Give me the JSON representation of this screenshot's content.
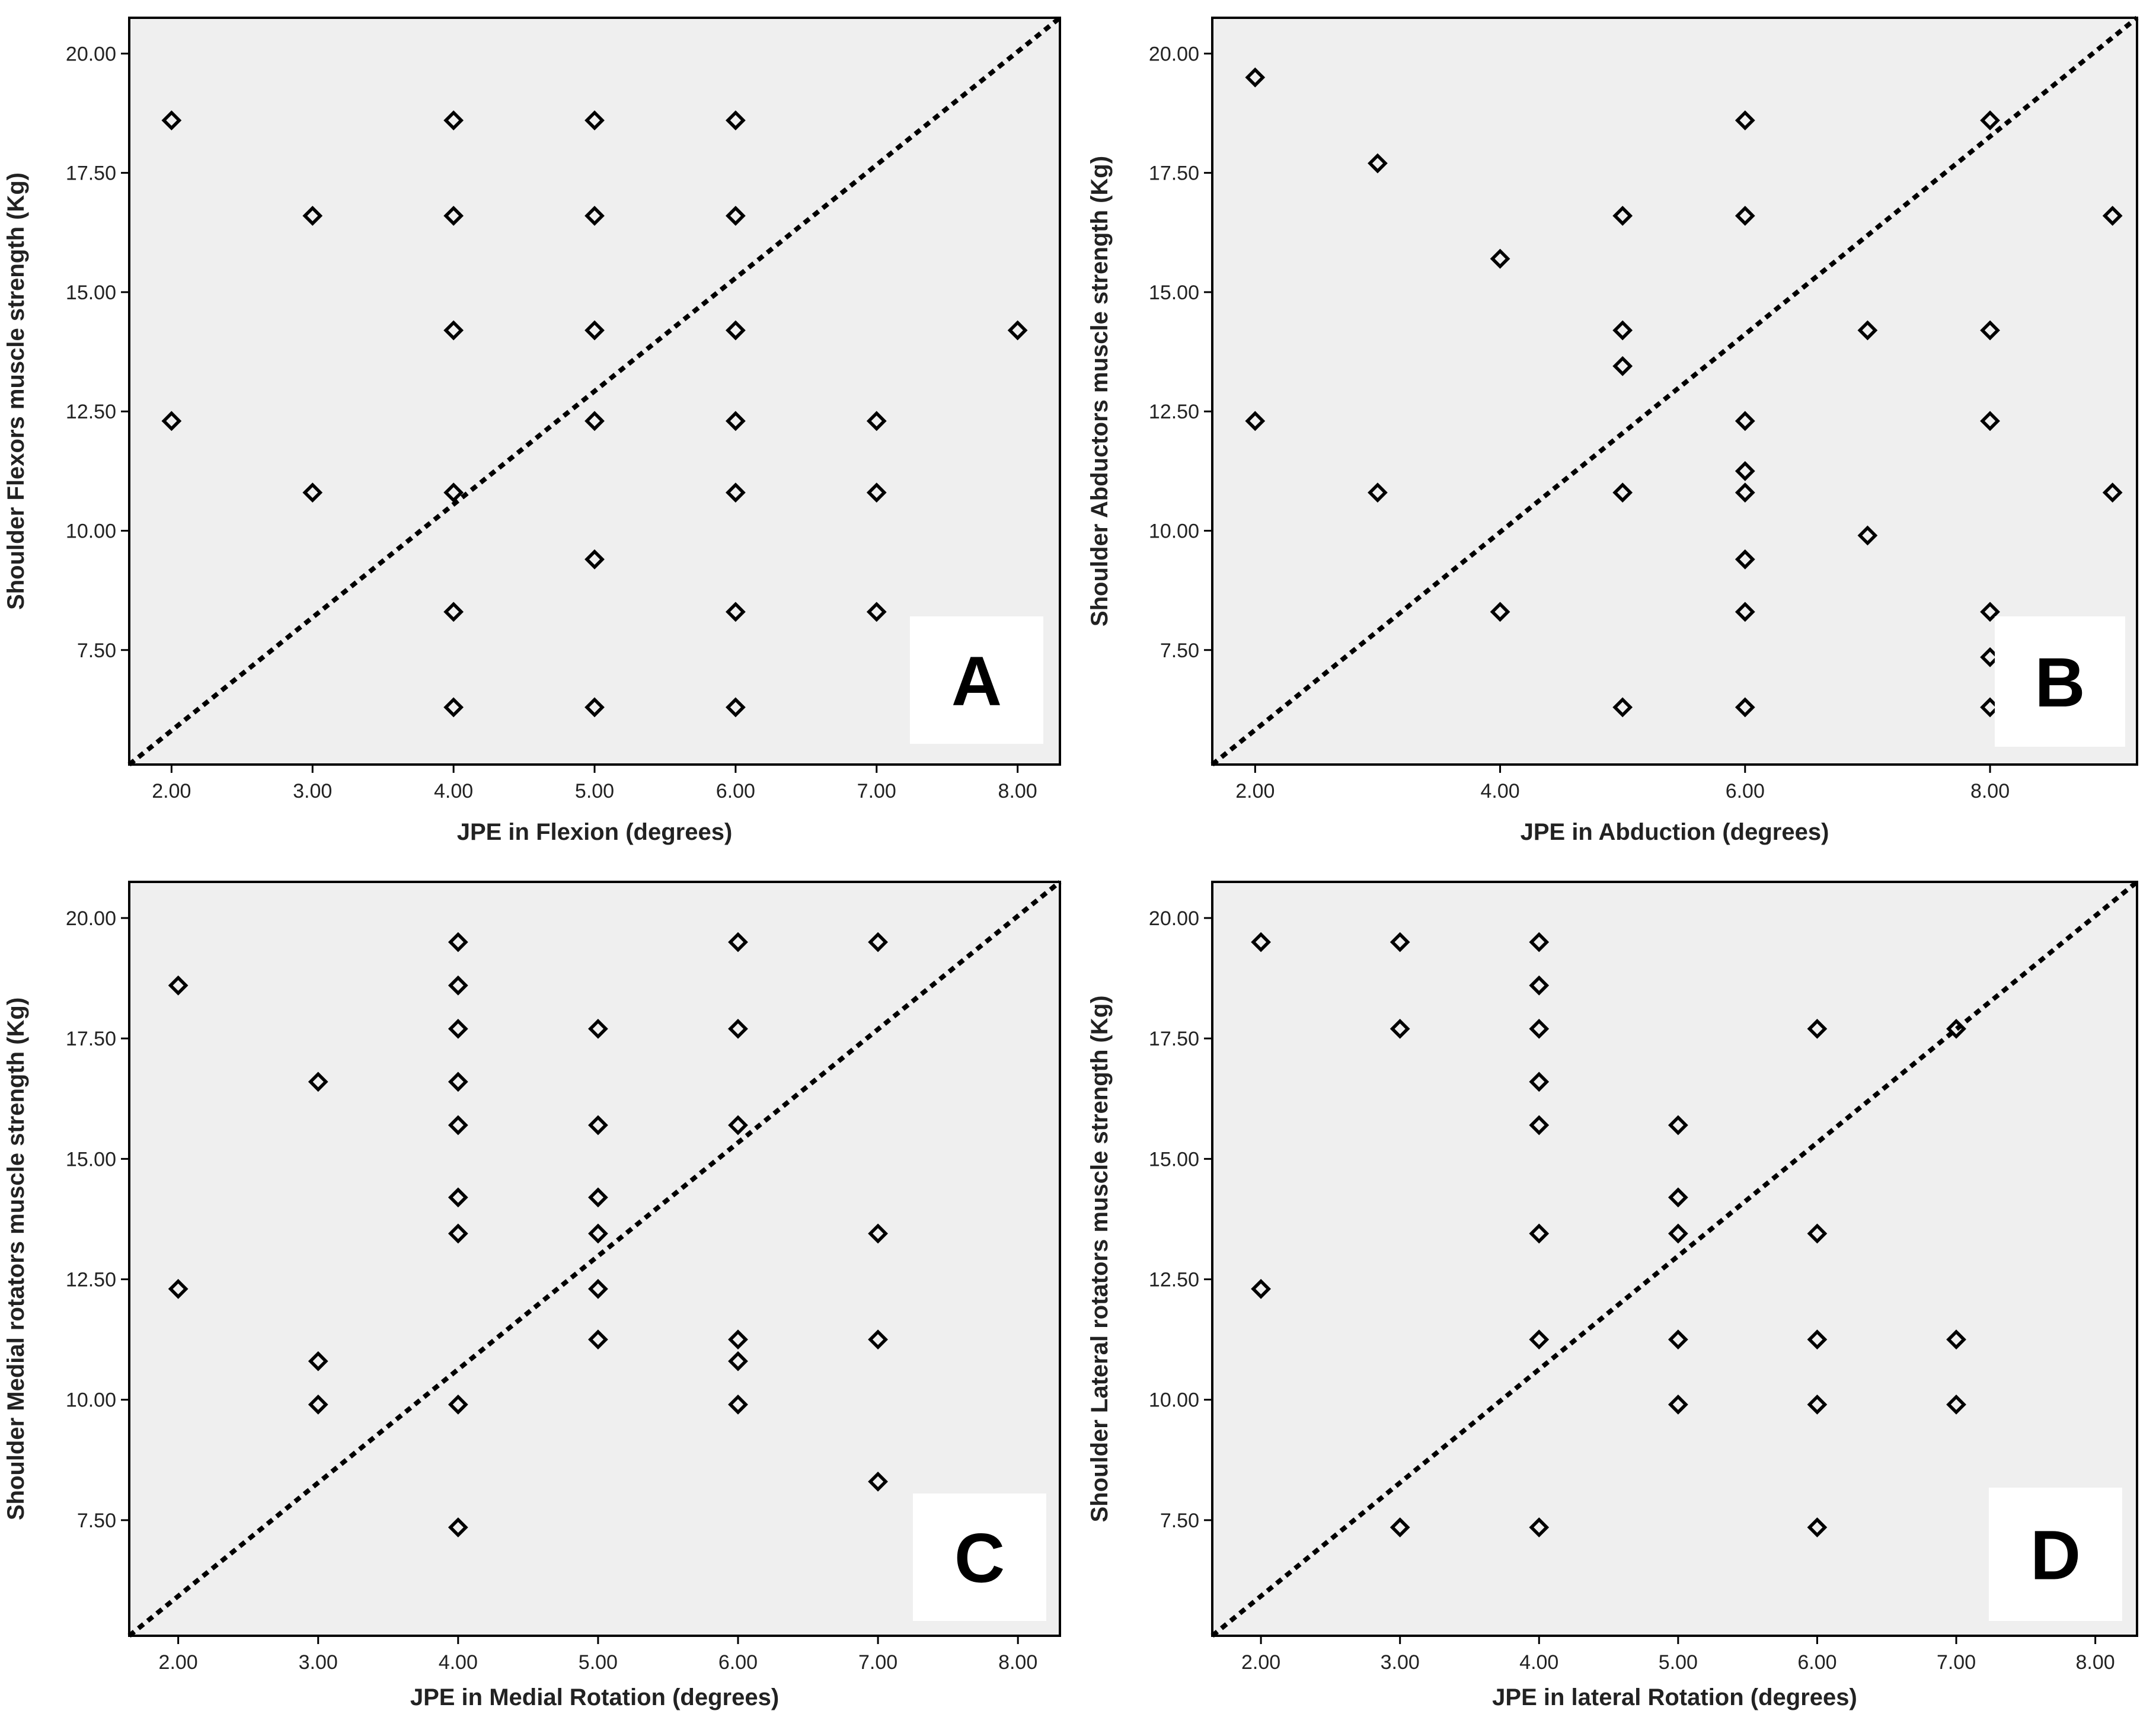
{
  "colors": {
    "plot_bg": "#efefef",
    "frame": "#000000",
    "marker": "#000000",
    "label_box": "#ffffff"
  },
  "chart_data": [
    {
      "type": "scatter",
      "panel": "A",
      "xlabel": "JPE in Flexion (degrees)",
      "ylabel": "Shoulder Flexors muscle strength (Kg)",
      "xlim": [
        1.7,
        8.3
      ],
      "ylim": [
        5.1,
        20.75
      ],
      "xticks": [
        "2.00",
        "3.00",
        "4.00",
        "5.00",
        "6.00",
        "7.00",
        "8.00"
      ],
      "yticks": [
        "7.50",
        "10.00",
        "12.50",
        "15.00",
        "17.50",
        "20.00"
      ],
      "reference_line": "diagonal",
      "points": [
        {
          "x": 2,
          "y": 18.6
        },
        {
          "x": 2,
          "y": 12.3
        },
        {
          "x": 3,
          "y": 16.6
        },
        {
          "x": 3,
          "y": 10.8
        },
        {
          "x": 4,
          "y": 18.6
        },
        {
          "x": 4,
          "y": 16.6
        },
        {
          "x": 4,
          "y": 14.2
        },
        {
          "x": 4,
          "y": 10.8
        },
        {
          "x": 4,
          "y": 8.3
        },
        {
          "x": 4,
          "y": 6.3
        },
        {
          "x": 5,
          "y": 18.6
        },
        {
          "x": 5,
          "y": 16.6
        },
        {
          "x": 5,
          "y": 14.2
        },
        {
          "x": 5,
          "y": 12.3
        },
        {
          "x": 5,
          "y": 9.4
        },
        {
          "x": 5,
          "y": 6.3
        },
        {
          "x": 6,
          "y": 18.6
        },
        {
          "x": 6,
          "y": 16.6
        },
        {
          "x": 6,
          "y": 14.2
        },
        {
          "x": 6,
          "y": 12.3
        },
        {
          "x": 6,
          "y": 10.8
        },
        {
          "x": 6,
          "y": 8.3
        },
        {
          "x": 6,
          "y": 6.3
        },
        {
          "x": 7,
          "y": 12.3
        },
        {
          "x": 7,
          "y": 10.8
        },
        {
          "x": 7,
          "y": 8.3
        },
        {
          "x": 8,
          "y": 14.2
        }
      ]
    },
    {
      "type": "scatter",
      "panel": "B",
      "xlabel": "JPE in Abduction (degrees)",
      "ylabel": "Shoulder Abductors muscle strength (Kg)",
      "xlim": [
        1.65,
        9.2
      ],
      "ylim": [
        5.1,
        20.75
      ],
      "xticks": [
        "2.00",
        "4.00",
        "6.00",
        "8.00"
      ],
      "yticks": [
        "7.50",
        "10.00",
        "12.50",
        "15.00",
        "17.50",
        "20.00"
      ],
      "reference_line": "diagonal",
      "points": [
        {
          "x": 2,
          "y": 19.5
        },
        {
          "x": 2,
          "y": 12.3
        },
        {
          "x": 3,
          "y": 17.7
        },
        {
          "x": 3,
          "y": 10.8
        },
        {
          "x": 4,
          "y": 15.7
        },
        {
          "x": 4,
          "y": 8.3
        },
        {
          "x": 5,
          "y": 16.6
        },
        {
          "x": 5,
          "y": 14.2
        },
        {
          "x": 5,
          "y": 13.45
        },
        {
          "x": 5,
          "y": 10.8
        },
        {
          "x": 5,
          "y": 6.3
        },
        {
          "x": 6,
          "y": 18.6
        },
        {
          "x": 6,
          "y": 16.6
        },
        {
          "x": 6,
          "y": 12.3
        },
        {
          "x": 6,
          "y": 11.25
        },
        {
          "x": 6,
          "y": 10.8
        },
        {
          "x": 6,
          "y": 9.4
        },
        {
          "x": 6,
          "y": 8.3
        },
        {
          "x": 6,
          "y": 6.3
        },
        {
          "x": 7,
          "y": 14.2
        },
        {
          "x": 7,
          "y": 9.9
        },
        {
          "x": 8,
          "y": 18.6
        },
        {
          "x": 8,
          "y": 14.2
        },
        {
          "x": 8,
          "y": 12.3
        },
        {
          "x": 8,
          "y": 8.3
        },
        {
          "x": 8,
          "y": 7.35
        },
        {
          "x": 8,
          "y": 6.3
        },
        {
          "x": 9,
          "y": 16.6
        },
        {
          "x": 9,
          "y": 10.8
        }
      ]
    },
    {
      "type": "scatter",
      "panel": "C",
      "xlabel": "JPE in Medial Rotation (degrees)",
      "ylabel": "Shoulder Medial rotators muscle strength (Kg)",
      "xlim": [
        1.65,
        8.3
      ],
      "ylim": [
        5.1,
        20.75
      ],
      "xticks": [
        "2.00",
        "3.00",
        "4.00",
        "5.00",
        "6.00",
        "7.00",
        "8.00"
      ],
      "yticks": [
        "7.50",
        "10.00",
        "12.50",
        "15.00",
        "17.50",
        "20.00"
      ],
      "reference_line": "diagonal",
      "points": [
        {
          "x": 2,
          "y": 18.6
        },
        {
          "x": 2,
          "y": 12.3
        },
        {
          "x": 3,
          "y": 16.6
        },
        {
          "x": 3,
          "y": 10.8
        },
        {
          "x": 3,
          "y": 9.9
        },
        {
          "x": 4,
          "y": 19.5
        },
        {
          "x": 4,
          "y": 18.6
        },
        {
          "x": 4,
          "y": 17.7
        },
        {
          "x": 4,
          "y": 16.6
        },
        {
          "x": 4,
          "y": 15.7
        },
        {
          "x": 4,
          "y": 14.2
        },
        {
          "x": 4,
          "y": 13.45
        },
        {
          "x": 4,
          "y": 9.9
        },
        {
          "x": 4,
          "y": 7.35
        },
        {
          "x": 5,
          "y": 17.7
        },
        {
          "x": 5,
          "y": 15.7
        },
        {
          "x": 5,
          "y": 14.2
        },
        {
          "x": 5,
          "y": 13.45
        },
        {
          "x": 5,
          "y": 12.3
        },
        {
          "x": 5,
          "y": 11.25
        },
        {
          "x": 6,
          "y": 19.5
        },
        {
          "x": 6,
          "y": 17.7
        },
        {
          "x": 6,
          "y": 15.7
        },
        {
          "x": 6,
          "y": 11.25
        },
        {
          "x": 6,
          "y": 10.8
        },
        {
          "x": 6,
          "y": 9.9
        },
        {
          "x": 7,
          "y": 19.5
        },
        {
          "x": 7,
          "y": 13.45
        },
        {
          "x": 7,
          "y": 11.25
        },
        {
          "x": 7,
          "y": 8.3
        }
      ]
    },
    {
      "type": "scatter",
      "panel": "D",
      "xlabel": "JPE in lateral Rotation (degrees)",
      "ylabel": "Shoulder Lateral rotators muscle strength (Kg)",
      "xlim": [
        1.65,
        8.3
      ],
      "ylim": [
        5.1,
        20.75
      ],
      "xticks": [
        "2.00",
        "3.00",
        "4.00",
        "5.00",
        "6.00",
        "7.00",
        "8.00"
      ],
      "yticks": [
        "7.50",
        "10.00",
        "12.50",
        "15.00",
        "17.50",
        "20.00"
      ],
      "reference_line": "diagonal",
      "points": [
        {
          "x": 2,
          "y": 19.5
        },
        {
          "x": 2,
          "y": 12.3
        },
        {
          "x": 3,
          "y": 19.5
        },
        {
          "x": 3,
          "y": 17.7
        },
        {
          "x": 3,
          "y": 7.35
        },
        {
          "x": 4,
          "y": 19.5
        },
        {
          "x": 4,
          "y": 18.6
        },
        {
          "x": 4,
          "y": 17.7
        },
        {
          "x": 4,
          "y": 16.6
        },
        {
          "x": 4,
          "y": 15.7
        },
        {
          "x": 4,
          "y": 13.45
        },
        {
          "x": 4,
          "y": 11.25
        },
        {
          "x": 4,
          "y": 7.35
        },
        {
          "x": 5,
          "y": 15.7
        },
        {
          "x": 5,
          "y": 14.2
        },
        {
          "x": 5,
          "y": 13.45
        },
        {
          "x": 5,
          "y": 11.25
        },
        {
          "x": 5,
          "y": 9.9
        },
        {
          "x": 6,
          "y": 17.7
        },
        {
          "x": 6,
          "y": 13.45
        },
        {
          "x": 6,
          "y": 11.25
        },
        {
          "x": 6,
          "y": 9.9
        },
        {
          "x": 6,
          "y": 7.35
        },
        {
          "x": 7,
          "y": 17.7
        },
        {
          "x": 7,
          "y": 11.25
        },
        {
          "x": 7,
          "y": 9.9
        }
      ]
    }
  ]
}
